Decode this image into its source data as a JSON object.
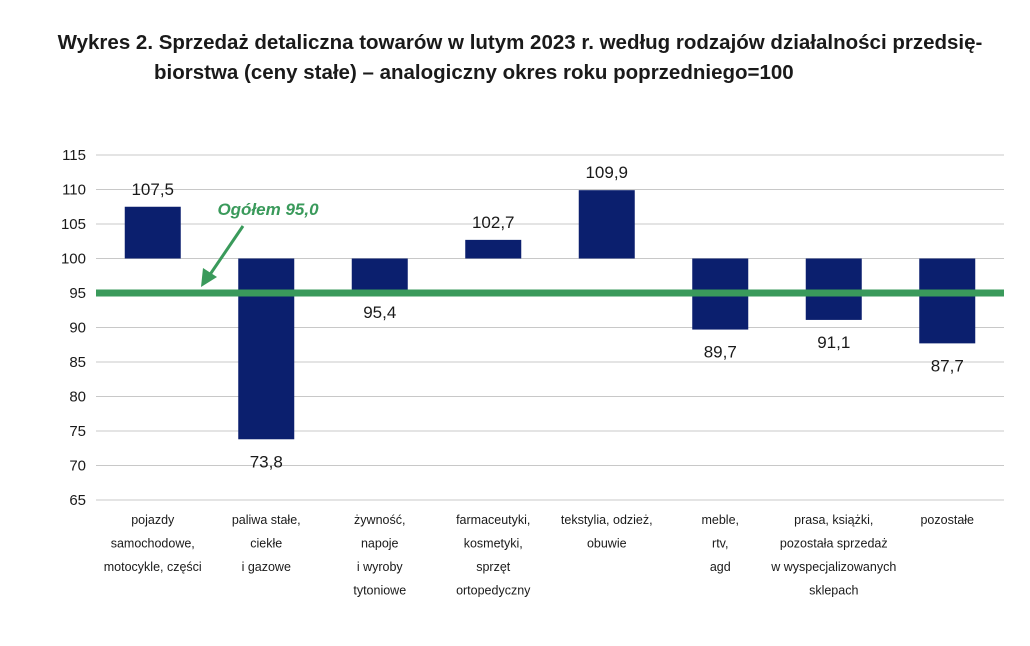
{
  "title_line1": "Wykres 2. Sprzedaż detaliczna towarów w lutym 2023 r. według rodzajów działalności przedsię-",
  "title_line2": "biorstwa (ceny stałe) – analogiczny okres roku poprzedniego=100",
  "colors": {
    "bar": "#0b1f6e",
    "reference": "#3a9a5b",
    "grid": "#c8c8c8"
  },
  "chart_data": {
    "type": "bar",
    "title": "Wykres 2. Sprzedaż detaliczna towarów w lutym 2023 r. według rodzajów działalności przedsiębiorstwa (ceny stałe) – analogiczny okres roku poprzedniego=100",
    "baseline": 100,
    "ylim": [
      65,
      115
    ],
    "yticks": [
      65,
      70,
      75,
      80,
      85,
      90,
      95,
      100,
      105,
      110,
      115
    ],
    "grid": true,
    "categories": [
      [
        "pojazdy",
        "samochodowe,",
        "motocykle, części"
      ],
      [
        "paliwa stałe,",
        "ciekłe",
        "i gazowe"
      ],
      [
        "żywność,",
        "napoje",
        "i wyroby",
        "tytoniowe"
      ],
      [
        "farmaceutyki,",
        "kosmetyki,",
        "sprzęt",
        "ortopedyczny"
      ],
      [
        "tekstylia, odzież,",
        "obuwie"
      ],
      [
        "meble,",
        "rtv,",
        "agd"
      ],
      [
        "prasa, książki,",
        "pozostała sprzedaż",
        "w wyspecjalizowanych",
        "sklepach"
      ],
      [
        "pozostałe"
      ]
    ],
    "values": [
      107.5,
      73.8,
      95.4,
      102.7,
      109.9,
      89.7,
      91.1,
      87.7
    ],
    "value_labels": [
      "107,5",
      "73,8",
      "95,4",
      "102,7",
      "109,9",
      "89,7",
      "91,1",
      "87,7"
    ],
    "reference_line": {
      "value": 95.0,
      "label": "Ogółem 95,0"
    }
  }
}
